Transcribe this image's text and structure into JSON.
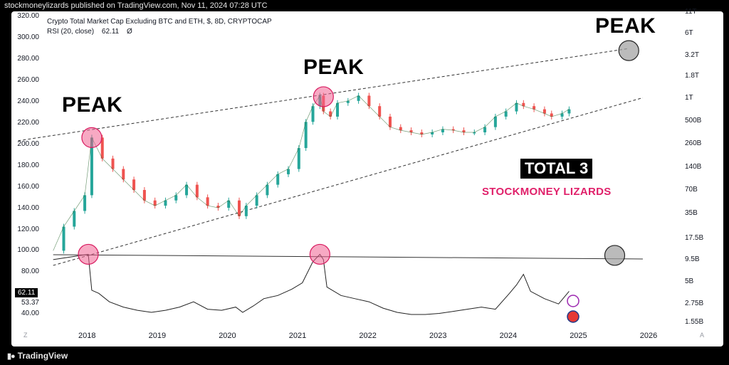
{
  "publisher_line": "stockmoneylizards published on TradingView.com, Nov 11, 2024 07:28 UTC",
  "legend": {
    "title": "Crypto Total Market Cap Excluding BTC and ETH, $, 8D, CRYPTOCAP",
    "rsi_label": "RSI (20, close)",
    "rsi_value": "62.11",
    "rsi_extra": "Ø"
  },
  "annotations": {
    "peak1": "PEAK",
    "peak2": "PEAK",
    "peak3": "PEAK",
    "total3": "TOTAL 3",
    "brand": "STOCKMONEY LIZARDS"
  },
  "rsi_badges": {
    "current": "62.11",
    "secondary": "53.37"
  },
  "footer": {
    "logo": "TradingView",
    "corner_left": "Z",
    "corner_right": "A"
  },
  "colors": {
    "bull": "#26a69a",
    "bear": "#ef5350",
    "peak_circle": "#f06292",
    "target_circle": "#9e9e9e",
    "brand": "#e0206a"
  },
  "chart_data": {
    "type": "line",
    "x_labels": [
      "2018",
      "2019",
      "2020",
      "2021",
      "2022",
      "2023",
      "2024",
      "2025",
      "2026"
    ],
    "left_axis_ticks": [
      "320.00",
      "300.00",
      "280.00",
      "260.00",
      "240.00",
      "220.00",
      "200.00",
      "180.00",
      "160.00",
      "140.00",
      "120.00",
      "100.00",
      "80.00",
      "40.00"
    ],
    "right_axis_ticks": [
      "11T",
      "6T",
      "3.2T",
      "1.8T",
      "1T",
      "500B",
      "260B",
      "140B",
      "70B",
      "35B",
      "17.5B",
      "9.5B",
      "5B",
      "2.75B",
      "1.55B"
    ],
    "price_series": {
      "x": [
        2017.5,
        2017.65,
        2017.8,
        2017.95,
        2018.05,
        2018.2,
        2018.35,
        2018.5,
        2018.65,
        2018.8,
        2018.95,
        2019.1,
        2019.25,
        2019.4,
        2019.55,
        2019.7,
        2019.85,
        2020.0,
        2020.15,
        2020.25,
        2020.4,
        2020.55,
        2020.7,
        2020.85,
        2021.0,
        2021.1,
        2021.2,
        2021.3,
        2021.35,
        2021.45,
        2021.55,
        2021.7,
        2021.85,
        2022.0,
        2022.15,
        2022.3,
        2022.45,
        2022.6,
        2022.75,
        2022.9,
        2023.05,
        2023.2,
        2023.35,
        2023.5,
        2023.65,
        2023.8,
        2023.95,
        2024.1,
        2024.2,
        2024.35,
        2024.5,
        2024.6,
        2024.75,
        2024.85
      ],
      "values": [
        97,
        120,
        135,
        150,
        205,
        185,
        175,
        165,
        155,
        145,
        140,
        145,
        150,
        160,
        148,
        140,
        138,
        145,
        130,
        140,
        150,
        160,
        170,
        175,
        195,
        220,
        235,
        245,
        230,
        225,
        238,
        240,
        245,
        235,
        225,
        215,
        212,
        210,
        208,
        210,
        213,
        212,
        210,
        210,
        215,
        225,
        230,
        238,
        235,
        232,
        228,
        225,
        228,
        232
      ]
    },
    "rsi_series": {
      "x": [
        2017.5,
        2017.7,
        2017.9,
        2018.0,
        2018.05,
        2018.15,
        2018.3,
        2018.5,
        2018.7,
        2018.9,
        2019.1,
        2019.3,
        2019.5,
        2019.7,
        2019.9,
        2020.1,
        2020.2,
        2020.35,
        2020.5,
        2020.7,
        2020.9,
        2021.05,
        2021.2,
        2021.3,
        2021.35,
        2021.4,
        2021.6,
        2021.8,
        2022.0,
        2022.2,
        2022.4,
        2022.6,
        2022.8,
        2023.0,
        2023.2,
        2023.4,
        2023.6,
        2023.8,
        2024.0,
        2024.1,
        2024.2,
        2024.3,
        2024.5,
        2024.7,
        2024.85
      ],
      "values": [
        92,
        94,
        96,
        97,
        63,
        60,
        52,
        47,
        44,
        42,
        44,
        47,
        52,
        45,
        44,
        47,
        42,
        48,
        55,
        58,
        64,
        70,
        90,
        97,
        92,
        66,
        58,
        55,
        52,
        46,
        42,
        40,
        40,
        41,
        43,
        45,
        47,
        45,
        60,
        68,
        78,
        62,
        55,
        50,
        62
      ]
    },
    "trendlines": [
      {
        "name": "",
        "from": [
          2017.0,
          202
        ],
        "to": [
          2025.7,
          290
        ],
        "style": "dashed"
      },
      {
        "name": "",
        "from": [
          2017.5,
          83
        ],
        "to": [
          2025.9,
          243
        ],
        "style": "dashed"
      },
      {
        "name": "",
        "from": [
          2017.5,
          99
        ],
        "to": [
          2025.9,
          96
        ],
        "style": "solid"
      }
    ],
    "markers": [
      {
        "kind": "peak",
        "x": 2018.05,
        "y": 205,
        "pane": "price"
      },
      {
        "kind": "peak",
        "x": 2021.35,
        "y": 244,
        "pane": "price"
      },
      {
        "kind": "target",
        "x": 2025.7,
        "y": 288,
        "pane": "price"
      },
      {
        "kind": "peak",
        "x": 2018.0,
        "y": 97,
        "pane": "rsi"
      },
      {
        "kind": "peak",
        "x": 2021.3,
        "y": 97,
        "pane": "rsi"
      },
      {
        "kind": "target",
        "x": 2025.5,
        "y": 96,
        "pane": "rsi"
      }
    ],
    "price_ylim": [
      80,
      320
    ],
    "rsi_ylim": [
      40,
      100
    ],
    "grid": false
  }
}
